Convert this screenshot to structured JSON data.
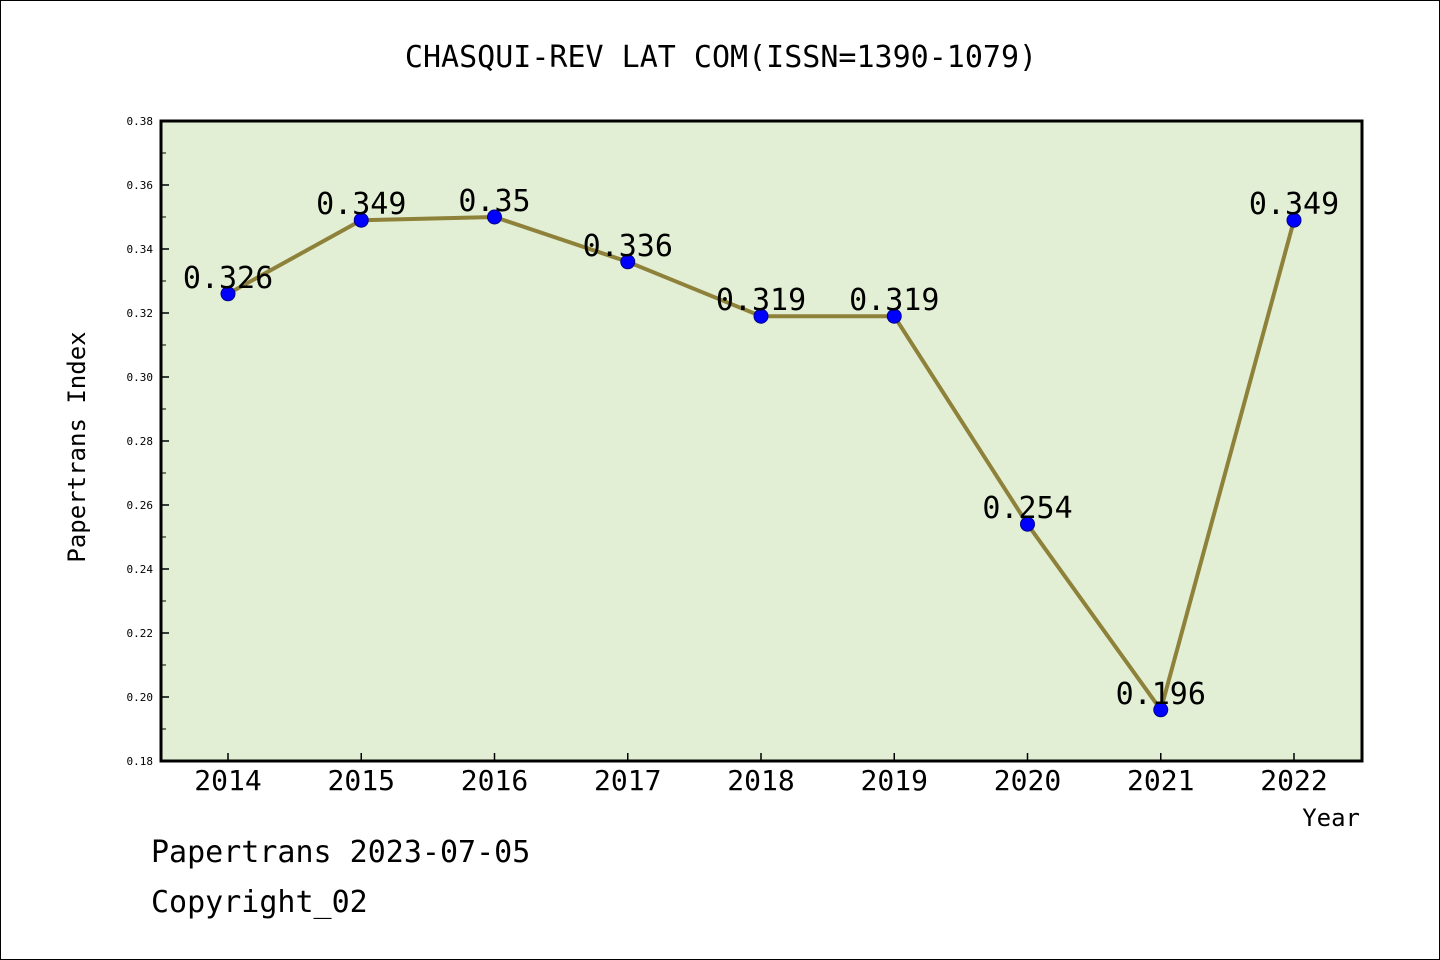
{
  "chart_data": {
    "type": "line",
    "title": "CHASQUI-REV LAT COM(ISSN=1390-1079)",
    "xlabel": "Year",
    "ylabel": "Papertrans Index",
    "categories": [
      "2014",
      "2015",
      "2016",
      "2017",
      "2018",
      "2019",
      "2020",
      "2021",
      "2022"
    ],
    "values": [
      0.326,
      0.349,
      0.35,
      0.336,
      0.319,
      0.319,
      0.254,
      0.196,
      0.349
    ],
    "data_labels": [
      "0.326",
      "0.349",
      "0.35",
      "0.336",
      "0.319",
      "0.319",
      "0.254",
      "0.196",
      "0.349"
    ],
    "ylim": [
      0.18,
      0.38
    ],
    "yticks": [
      "0.18",
      "0.20",
      "0.22",
      "0.24",
      "0.26",
      "0.28",
      "0.30",
      "0.32",
      "0.34",
      "0.36",
      "0.38"
    ],
    "grid": false,
    "colors": {
      "plot_background": "#e2efd5",
      "line": "#8e8139",
      "marker": "#0000ff"
    }
  },
  "footer": {
    "line1": "Papertrans 2023-07-05",
    "line2": "Copyright_02"
  }
}
